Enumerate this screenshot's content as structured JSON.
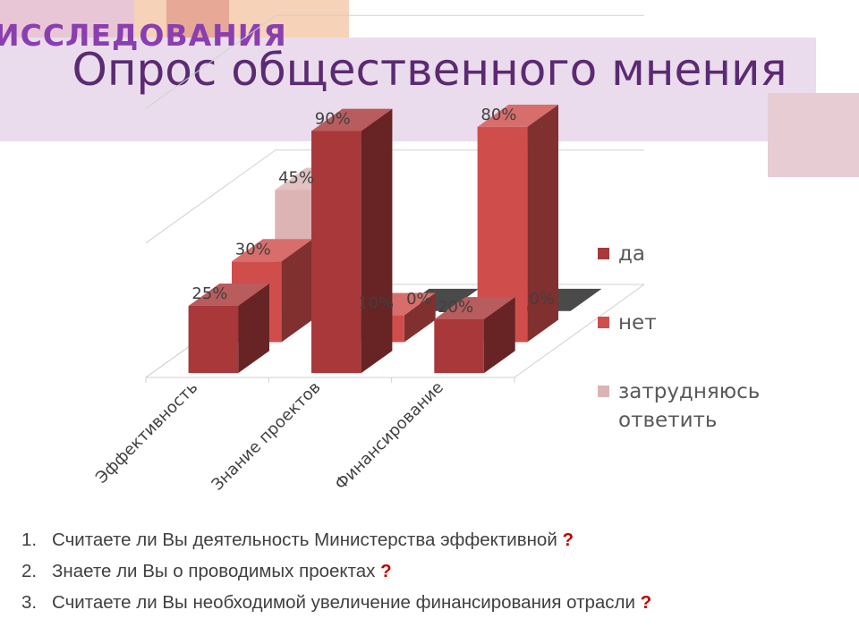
{
  "slide": {
    "header": "ИССЛЕДОВАНИЯ",
    "title": "Опрос общественного мнения"
  },
  "colors": {
    "da": "#a8383a",
    "net": "#cf4e4c",
    "zatrudnyayus": "#dcb4b4",
    "title": "#5b2a72",
    "header": "#8a3fb0",
    "question_mark": "#c00000"
  },
  "chart_data": {
    "type": "bar",
    "categories": [
      "Эффективность",
      "Знание проектов",
      "Финансирование"
    ],
    "series": [
      {
        "name": "да",
        "values": [
          25,
          90,
          20
        ],
        "labels": [
          "25%",
          "90%",
          "20%"
        ]
      },
      {
        "name": "нет",
        "values": [
          30,
          10,
          80
        ],
        "labels": [
          "30%",
          "10%",
          "80%"
        ]
      },
      {
        "name": "затрудняюсь ответить",
        "values": [
          45,
          0,
          0
        ],
        "labels": [
          "45%",
          "0%",
          "0%"
        ]
      }
    ],
    "ylim": [
      0,
      100
    ],
    "legend": "right",
    "grid": true
  },
  "questions": [
    {
      "num": "1.",
      "text": "Считаете ли Вы деятельность Министерства эффективной",
      "mark": "?"
    },
    {
      "num": "2.",
      "text": "Знаете ли Вы о проводимых проектах",
      "mark": "?"
    },
    {
      "num": "3.",
      "text": "Считаете ли Вы необходимой увеличение финансирования отрасли",
      "mark": "?"
    }
  ]
}
